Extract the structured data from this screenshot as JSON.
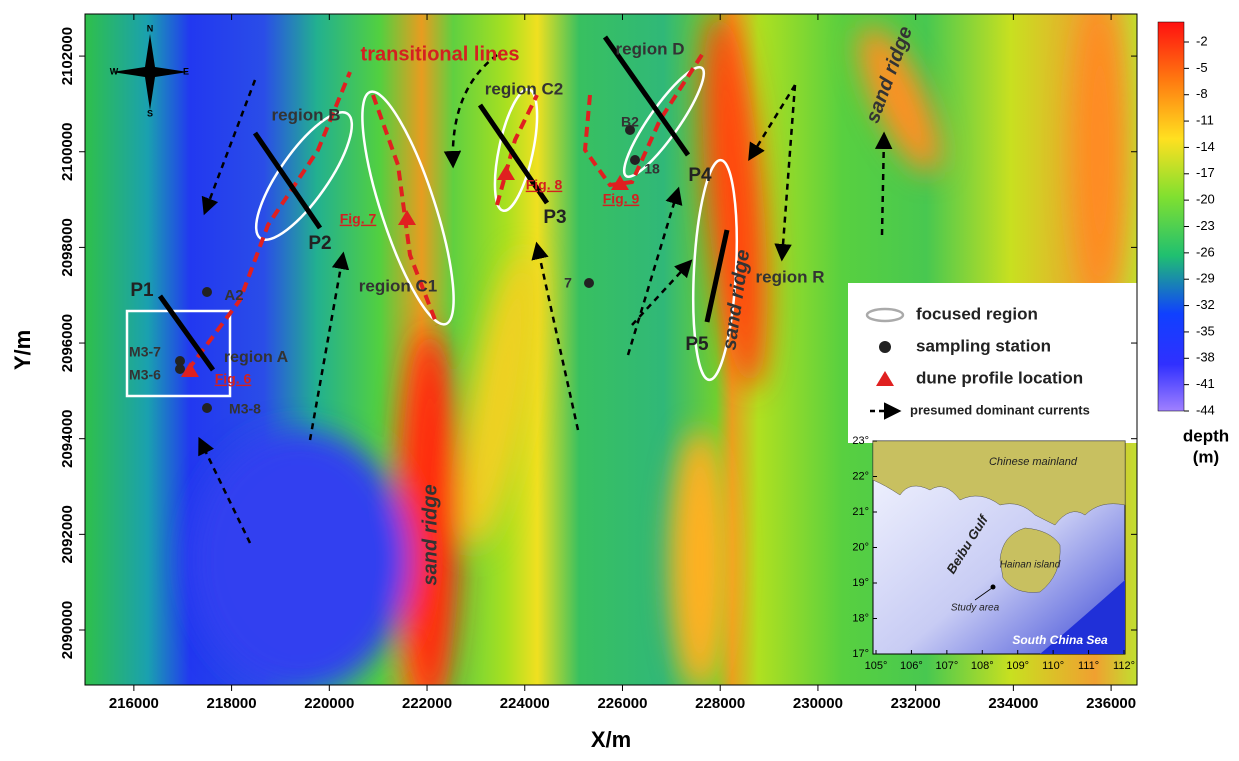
{
  "axes": {
    "x_label": "X/m",
    "y_label": "Y/m",
    "xlim": [
      215000,
      236530
    ],
    "ylim": [
      2088850,
      2102880
    ],
    "xticks": [
      216000,
      218000,
      220000,
      222000,
      224000,
      226000,
      228000,
      230000,
      232000,
      234000,
      236000
    ],
    "yticks": [
      2090000,
      2092000,
      2094000,
      2096000,
      2098000,
      2100000,
      2102000
    ]
  },
  "colorbar": {
    "title": [
      "depth",
      "(m)"
    ],
    "labels": [
      -2,
      -5,
      -8,
      -11,
      -14,
      -17,
      -20,
      -23,
      -26,
      -29,
      -32,
      -35,
      -38,
      -41,
      -44
    ]
  },
  "compass": {
    "n": "N",
    "s": "S",
    "e": "E",
    "w": "W"
  },
  "annotations": [
    "transitional lines",
    "region B",
    "region C2",
    "region D",
    "B2",
    "18",
    "P4",
    "P3",
    "Fig. 8",
    "Fig. 9",
    "Fig. 7",
    "P2",
    "region C1",
    "P1",
    "A2",
    "M3-7",
    "M3-6",
    "region A",
    "Fig. 6",
    "M3-8",
    "7",
    "P5",
    "sand ridge",
    "sand ridge",
    "sand ridge",
    "region R"
  ],
  "legend": [
    "focused region",
    "sampling station",
    "dune profile location",
    "presumed dominant currents"
  ],
  "inset": {
    "xlim": [
      105,
      112
    ],
    "ylim": [
      17,
      23
    ],
    "xticks": [
      {
        "value": 105,
        "label": "105°"
      },
      {
        "value": 106,
        "label": "106°"
      },
      {
        "value": 107,
        "label": "107°"
      },
      {
        "value": 108,
        "label": "108°"
      },
      {
        "value": 109,
        "label": "109°"
      },
      {
        "value": 110,
        "label": "110°"
      },
      {
        "value": 111,
        "label": "111°"
      },
      {
        "value": 112,
        "label": "112°"
      }
    ],
    "yticks": [
      {
        "value": 17,
        "label": "17°"
      },
      {
        "value": 18,
        "label": "18°"
      },
      {
        "value": 19,
        "label": "19°"
      },
      {
        "value": 20,
        "label": "20°"
      },
      {
        "value": 21,
        "label": "21°"
      },
      {
        "value": 22,
        "label": "22°"
      },
      {
        "value": 23,
        "label": "23°"
      }
    ],
    "labels": [
      "Chinese mainland",
      "Beibu Gulf",
      "Hainan island",
      "Study area",
      "South China Sea"
    ]
  }
}
